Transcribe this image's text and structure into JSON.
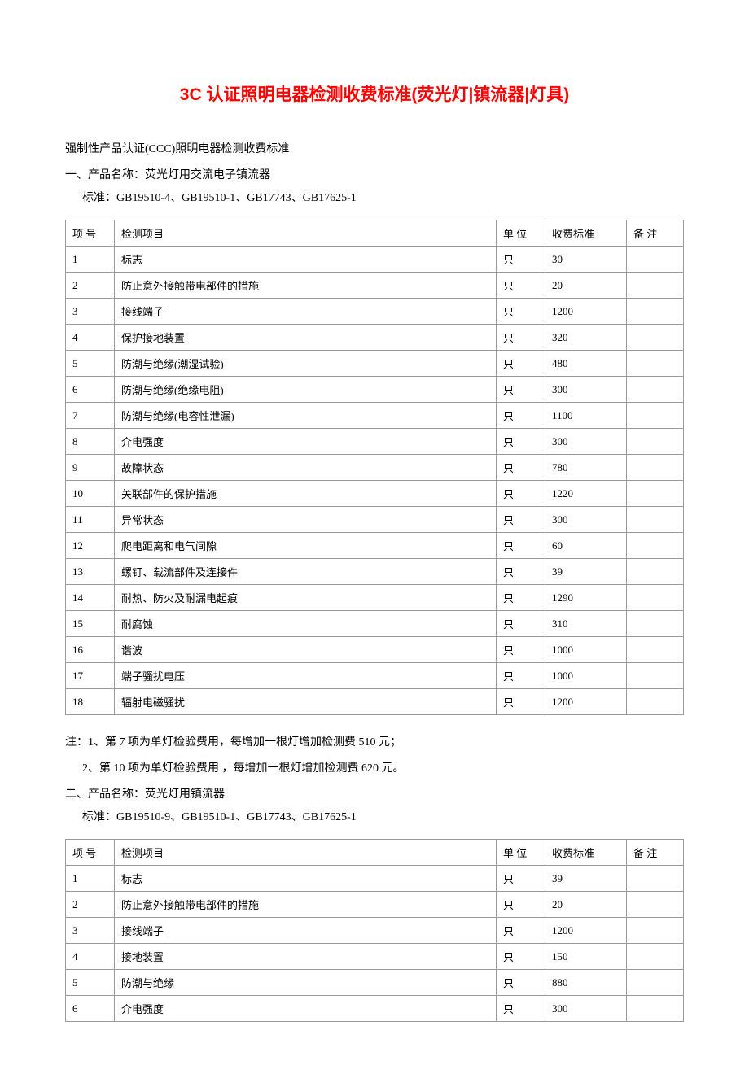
{
  "title": "3C 认证照明电器检测收费标准(荧光灯|镇流器|灯具)",
  "intro": "强制性产品认证(CCC)照明电器检测收费标准",
  "section1": {
    "heading": "一、产品名称：荧光灯用交流电子镇流器",
    "standard": "标准：GB19510-4、GB19510-1、GB17743、GB17625-1",
    "columns": {
      "num": "项 号",
      "item": "检测项目",
      "unit": "单 位",
      "fee": "收费标准",
      "note": "备 注"
    },
    "rows": [
      {
        "num": "1",
        "item": "标志",
        "unit": "只",
        "fee": "30",
        "note": ""
      },
      {
        "num": "2",
        "item": "防止意外接触带电部件的措施",
        "unit": "只",
        "fee": "20",
        "note": ""
      },
      {
        "num": "3",
        "item": "接线端子",
        "unit": "只",
        "fee": "1200",
        "note": ""
      },
      {
        "num": "4",
        "item": "保护接地装置",
        "unit": "只",
        "fee": "320",
        "note": ""
      },
      {
        "num": "5",
        "item": "防潮与绝缘(潮湿试验)",
        "unit": "只",
        "fee": "480",
        "note": ""
      },
      {
        "num": "6",
        "item": "防潮与绝缘(绝缘电阻)",
        "unit": "只",
        "fee": "300",
        "note": ""
      },
      {
        "num": "7",
        "item": "防潮与绝缘(电容性泄漏)",
        "unit": "只",
        "fee": "1100",
        "note": ""
      },
      {
        "num": "8",
        "item": "介电强度",
        "unit": "只",
        "fee": "300",
        "note": ""
      },
      {
        "num": "9",
        "item": "故障状态",
        "unit": "只",
        "fee": "780",
        "note": ""
      },
      {
        "num": "10",
        "item": "关联部件的保护措施",
        "unit": "只",
        "fee": "1220",
        "note": ""
      },
      {
        "num": "11",
        "item": "异常状态",
        "unit": "只",
        "fee": "300",
        "note": ""
      },
      {
        "num": "12",
        "item": "爬电距离和电气间隙",
        "unit": "只",
        "fee": "60",
        "note": ""
      },
      {
        "num": "13",
        "item": "螺钉、载流部件及连接件",
        "unit": "只",
        "fee": "39",
        "note": ""
      },
      {
        "num": "14",
        "item": "耐热、防火及耐漏电起痕",
        "unit": "只",
        "fee": "1290",
        "note": ""
      },
      {
        "num": "15",
        "item": "耐腐蚀",
        "unit": "只",
        "fee": "310",
        "note": ""
      },
      {
        "num": "16",
        "item": "谐波",
        "unit": "只",
        "fee": "1000",
        "note": ""
      },
      {
        "num": "17",
        "item": "端子骚扰电压",
        "unit": "只",
        "fee": "1000",
        "note": ""
      },
      {
        "num": "18",
        "item": "辐射电磁骚扰",
        "unit": "只",
        "fee": "1200",
        "note": ""
      }
    ],
    "note1": "注：1、第 7 项为单灯检验费用，每增加一根灯增加检测费 510 元；",
    "note2": "2、第 10 项为单灯检验费用 ，每增加一根灯增加检测费 620 元。"
  },
  "section2": {
    "heading": "二、产品名称：荧光灯用镇流器",
    "standard": "标准：GB19510-9、GB19510-1、GB17743、GB17625-1",
    "columns": {
      "num": "项 号",
      "item": "检测项目",
      "unit": "单 位",
      "fee": "收费标准",
      "note": "备 注"
    },
    "rows": [
      {
        "num": "1",
        "item": "标志",
        "unit": "只",
        "fee": "39",
        "note": ""
      },
      {
        "num": "2",
        "item": "防止意外接触带电部件的措施",
        "unit": "只",
        "fee": "20",
        "note": ""
      },
      {
        "num": "3",
        "item": "接线端子",
        "unit": "只",
        "fee": "1200",
        "note": ""
      },
      {
        "num": "4",
        "item": "接地装置",
        "unit": "只",
        "fee": "150",
        "note": ""
      },
      {
        "num": "5",
        "item": "防潮与绝缘",
        "unit": "只",
        "fee": "880",
        "note": ""
      },
      {
        "num": "6",
        "item": "介电强度",
        "unit": "只",
        "fee": "300",
        "note": ""
      }
    ]
  },
  "colors": {
    "title": "#ff0000",
    "text": "#000000",
    "border": "#999999",
    "background": "#ffffff"
  }
}
